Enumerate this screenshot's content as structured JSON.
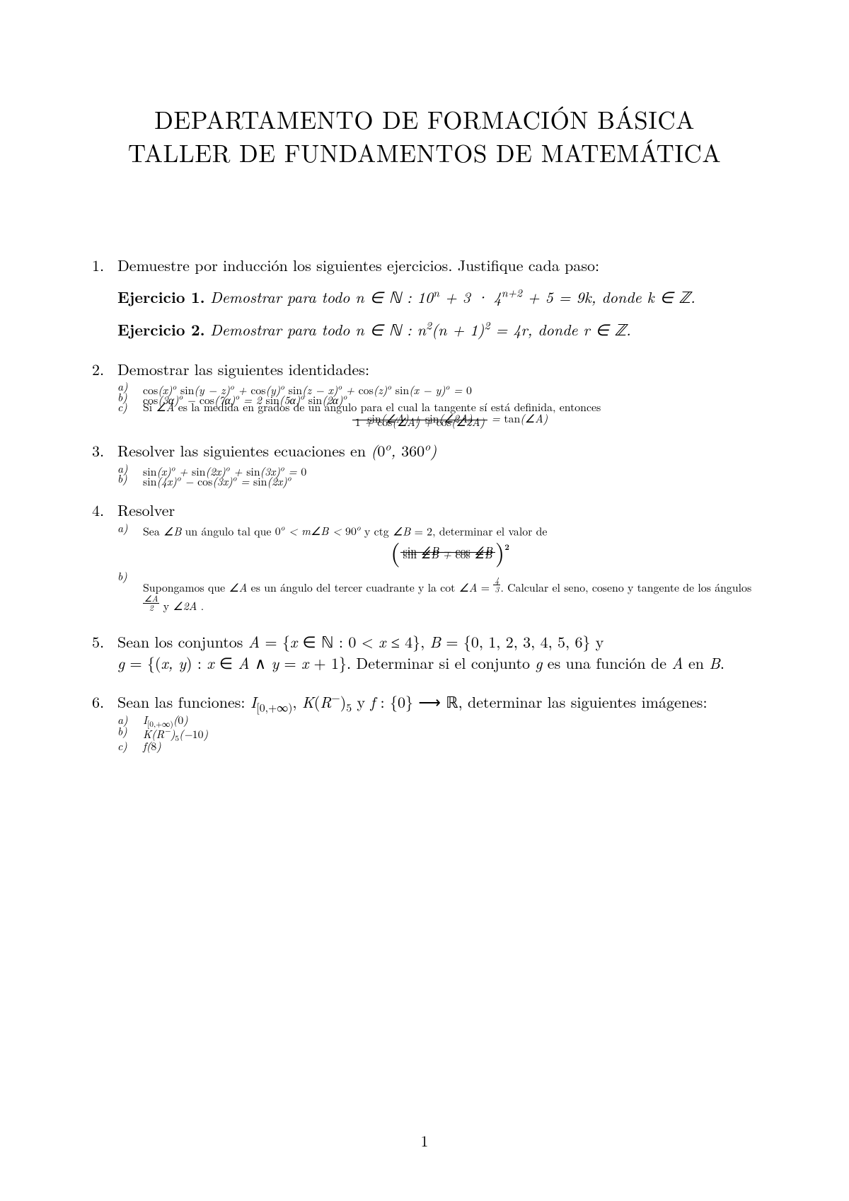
{
  "colors": {
    "text": "#000000",
    "background": "#ffffff"
  },
  "typography": {
    "base_fontsize_pt": 12,
    "title_fontsize_pt": 20,
    "family": "Computer Modern / Latin Modern"
  },
  "title_line1": "DEPARTAMENTO DE FORMACIÓN BÁSICA",
  "title_line2": "TALLER DE FUNDAMENTOS DE MATEMÁTICA",
  "page_number": "1",
  "p1_intro": "Demuestre por inducción los siguientes ejercicios. Justifique cada paso:",
  "p1_ej1_label": "Ejercicio 1.",
  "p1_ej1_text": "Demostrar para todo n ∈ ℕ : 10ⁿ + 3 · 4ⁿ⁺² + 5 = 9k, donde k ∈ ℤ.",
  "p1_ej2_label": "Ejercicio 2.",
  "p1_ej2_text": "Demostrar para todo n ∈ ℕ : n²(n + 1)² = 4r, donde r ∈ ℤ.",
  "p2_intro": "Demostrar las siguientes identidades:",
  "p2_a": "cos(x)ᵒ sin(y − z)ᵒ + cos(y)ᵒ sin(z − x)ᵒ + cos(z)ᵒ sin(x − y)ᵒ = 0",
  "p2_b": "cos(3α)ᵒ − cos(7α)ᵒ = 2 sin(5α)ᵒ sin(2α)ᵒ",
  "p2_c_text": "Si ∠A es la medida en grados de un ángulo para el cual la tangente sí está definida, entonces",
  "p2_c_frac_num": "sin(∠A) + sin(∠2A)",
  "p2_c_frac_den": "1 + cos(∠A) + cos(∠2A)",
  "p2_c_rhs": "= tan(∠A)",
  "p3_intro": "Resolver las siguientes ecuaciones en (0ᵒ, 360ᵒ)",
  "p3_a": "sin(x)ᵒ + sin(2x)ᵒ + sin(3x)ᵒ = 0",
  "p3_b": "sin(4x)ᵒ − cos(3x)ᵒ = sin(2x)ᵒ",
  "p4_intro": "Resolver",
  "p4_a_text": "Sea ∠B un ángulo tal que 0ᵒ < m∠B < 90ᵒ y ctg ∠B = 2, determinar el valor de",
  "p4_a_frac_num": "sin ∠B − cos ∠B",
  "p4_a_frac_den": "sin ∠B + cos ∠B",
  "p4_a_exp": "2",
  "p4_b_pre": "Supongamos que ∠A es un ángulo del tercer cuadrante y la cot ∠A = ",
  "p4_b_frac_num": "4",
  "p4_b_frac_den": "3",
  "p4_b_mid": ". Calcular el seno, coseno y tangente de los ángulos ",
  "p4_b_half_num": "∠A",
  "p4_b_half_den": "2",
  "p4_b_post": " y ∠2A .",
  "p5_line1": "Sean los conjuntos A = {x ∈ ℕ : 0 < x ≤ 4}, B = {0, 1, 2, 3, 4, 5, 6} y",
  "p5_line2": "g = {(x, y) : x ∈ A ∧ y = x + 1}. Determinar si el conjunto g es una función de A en B.",
  "p6_intro": "Sean las funciones: I[0,+∞), K(R⁻)₅ y f : {0} ⟶ ℝ, determinar las siguientes imágenes:",
  "p6_a": "I[0,+∞)(0)",
  "p6_b": "K(R⁻)₅(−10)",
  "p6_c": "f(8)"
}
